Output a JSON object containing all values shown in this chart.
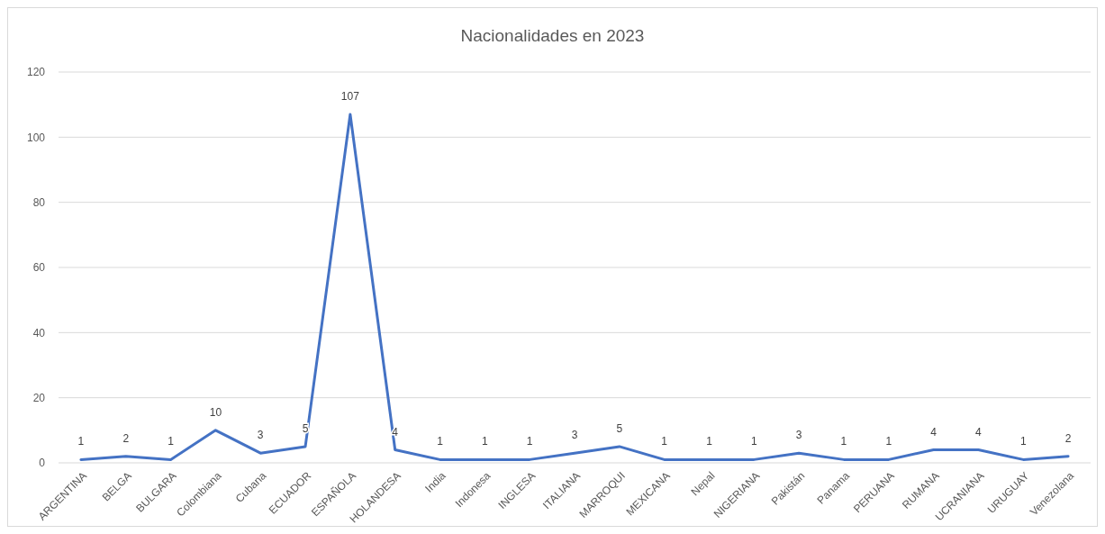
{
  "chart_data": {
    "type": "line",
    "title": "Nacionalidades en 2023",
    "categories": [
      "ARGENTINA",
      "BELGA",
      "BULGARA",
      "Colombiana",
      "Cubana",
      "ECUADOR",
      "ESPAÑOLA",
      "HOLANDESA",
      "India",
      "Indonesa",
      "INGLESA",
      "ITALIANA",
      "MARROQUI",
      "MEXICANA",
      "Nepal",
      "NIGERIANA",
      "Pakistán",
      "Panama",
      "PERUANA",
      "RUMANA",
      "UCRANIANA",
      "URUGUAY",
      "Venezolana"
    ],
    "series": [
      {
        "color": "#4472c4",
        "values": [
          1,
          2,
          1,
          10,
          3,
          5,
          107,
          4,
          1,
          1,
          1,
          3,
          5,
          1,
          1,
          1,
          3,
          1,
          1,
          4,
          4,
          1,
          2
        ]
      }
    ],
    "ylim": [
      0,
      120
    ],
    "yticks": [
      0,
      20,
      40,
      60,
      80,
      100,
      120
    ],
    "grid": "y",
    "data_labels": true,
    "marker": "none",
    "line_style": "solid"
  }
}
